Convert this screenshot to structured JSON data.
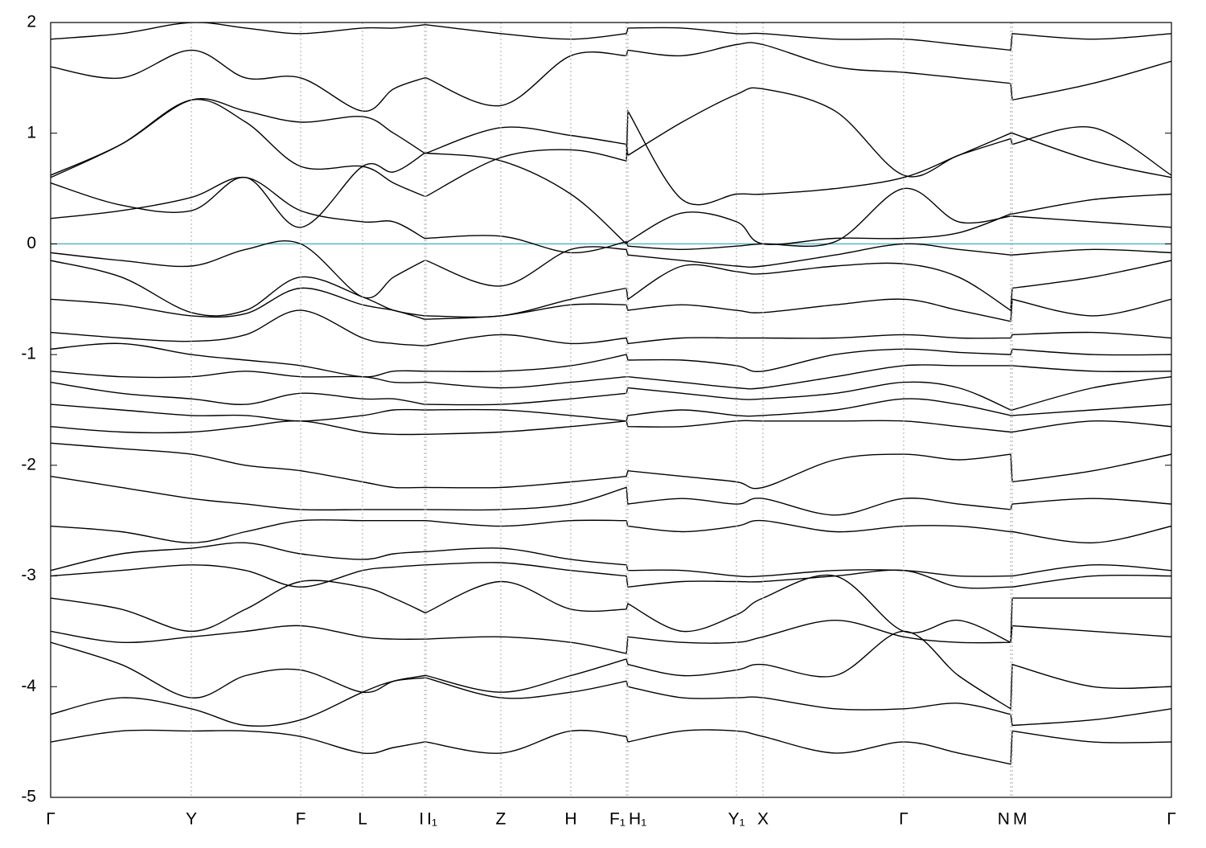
{
  "chart_data": {
    "type": "line",
    "x": [
      0,
      0.063,
      0.1255,
      0.174,
      0.2231,
      0.2783,
      0.306,
      0.3336,
      0.335,
      0.4017,
      0.4641,
      0.5136,
      0.5151,
      0.5635,
      0.6119,
      0.6356,
      0.7,
      0.7611,
      0.81,
      0.8565,
      0.858,
      0.93,
      1.0
    ],
    "xlim": [
      0,
      1.0
    ],
    "xticks": [
      {
        "value": 0,
        "label": "Γ"
      },
      {
        "value": 0.1255,
        "label": "Y"
      },
      {
        "value": 0.2231,
        "label": "F"
      },
      {
        "value": 0.2783,
        "label": "L"
      },
      {
        "value": 0.3336,
        "label": "I"
      },
      {
        "value": 0.335,
        "label": "I₁"
      },
      {
        "value": 0.4017,
        "label": "Z"
      },
      {
        "value": 0.4641,
        "label": "H"
      },
      {
        "value": 0.5136,
        "label": "F₁"
      },
      {
        "value": 0.5151,
        "label": "H₁"
      },
      {
        "value": 0.6119,
        "label": "Y₁"
      },
      {
        "value": 0.6356,
        "label": "X"
      },
      {
        "value": 0.7611,
        "label": "Γ"
      },
      {
        "value": 0.8565,
        "label": "N"
      },
      {
        "value": 0.858,
        "label": "M"
      },
      {
        "value": 1.0,
        "label": "Γ"
      }
    ],
    "ylim": [
      -5,
      2
    ],
    "yticks": [
      2,
      1,
      0,
      -1,
      -2,
      -3,
      -4,
      -5
    ],
    "x_grid": true,
    "hlines": [
      {
        "value": 0,
        "color": "#5ab4cc"
      }
    ],
    "series": [
      {
        "color": "#000000",
        "values": [
          0.6,
          0.9,
          1.3,
          1.1,
          0.7,
          0.7,
          0.55,
          0.43,
          0.43,
          0.78,
          0.85,
          0.75,
          1.2,
          0.4,
          0.45,
          0.45,
          0.5,
          0.6,
          0.8,
          1.0,
          1.0,
          0.75,
          0.6
        ]
      },
      {
        "color": "#000000",
        "values": [
          0.55,
          0.35,
          0.3,
          0.6,
          0.15,
          0.7,
          0.65,
          0.82,
          0.82,
          0.75,
          0.45,
          0.0,
          0.02,
          0.28,
          0.2,
          0.0,
          0.05,
          0.05,
          0.1,
          0.27,
          0.27,
          0.4,
          0.45
        ]
      },
      {
        "color": "#000000",
        "values": [
          0.23,
          0.3,
          0.42,
          0.6,
          0.3,
          0.2,
          0.2,
          0.05,
          0.05,
          0.07,
          -0.08,
          0.02,
          -0.02,
          -0.05,
          -0.02,
          0.0,
          0.02,
          0.5,
          0.2,
          0.25,
          0.25,
          0.2,
          0.15
        ]
      },
      {
        "color": "#000000",
        "values": [
          -0.08,
          -0.15,
          -0.2,
          -0.05,
          0.0,
          -0.48,
          -0.3,
          -0.15,
          -0.15,
          -0.38,
          -0.05,
          -0.05,
          -0.1,
          -0.15,
          -0.2,
          -0.2,
          -0.1,
          0.0,
          -0.05,
          -0.1,
          -0.1,
          -0.05,
          -0.08
        ]
      },
      {
        "color": "#000000",
        "values": [
          -0.15,
          -0.3,
          -0.62,
          -0.6,
          -0.3,
          -0.48,
          -0.6,
          -0.65,
          -0.65,
          -0.65,
          -0.5,
          -0.4,
          -0.5,
          -0.2,
          -0.25,
          -0.27,
          -0.2,
          -0.18,
          -0.3,
          -0.6,
          -0.4,
          -0.3,
          -0.15
        ]
      },
      {
        "color": "#000000",
        "values": [
          -0.5,
          -0.55,
          -0.65,
          -0.63,
          -0.4,
          -0.55,
          -0.6,
          -0.68,
          -0.68,
          -0.65,
          -0.55,
          -0.55,
          -0.6,
          -0.55,
          -0.6,
          -0.62,
          -0.55,
          -0.5,
          -0.6,
          -0.7,
          -0.5,
          -0.65,
          -0.5
        ]
      },
      {
        "color": "#000000",
        "values": [
          -0.8,
          -0.85,
          -0.88,
          -0.82,
          -0.6,
          -0.85,
          -0.9,
          -0.92,
          -0.92,
          -0.82,
          -0.9,
          -0.85,
          -0.9,
          -0.85,
          -0.85,
          -0.85,
          -0.85,
          -0.82,
          -0.85,
          -0.85,
          -0.82,
          -0.8,
          -0.85
        ]
      },
      {
        "color": "#000000",
        "values": [
          -0.95,
          -0.9,
          -1.0,
          -1.05,
          -1.1,
          -1.2,
          -1.15,
          -1.15,
          -1.15,
          -1.15,
          -1.1,
          -1.0,
          -1.05,
          -1.05,
          -1.1,
          -1.15,
          -1.0,
          -0.95,
          -0.98,
          -1.0,
          -0.95,
          -1.0,
          -1.0
        ]
      },
      {
        "color": "#000000",
        "values": [
          -1.15,
          -1.2,
          -1.2,
          -1.15,
          -1.2,
          -1.2,
          -1.25,
          -1.25,
          -1.25,
          -1.3,
          -1.25,
          -1.2,
          -1.2,
          -1.25,
          -1.3,
          -1.3,
          -1.2,
          -1.1,
          -1.1,
          -1.1,
          -1.1,
          -1.15,
          -1.15
        ]
      },
      {
        "color": "#000000",
        "values": [
          -1.25,
          -1.35,
          -1.4,
          -1.45,
          -1.35,
          -1.4,
          -1.4,
          -1.45,
          -1.45,
          -1.45,
          -1.4,
          -1.35,
          -1.3,
          -1.35,
          -1.4,
          -1.4,
          -1.35,
          -1.25,
          -1.3,
          -1.5,
          -1.5,
          -1.3,
          -1.2
        ]
      },
      {
        "color": "#000000",
        "values": [
          -1.45,
          -1.5,
          -1.55,
          -1.55,
          -1.6,
          -1.55,
          -1.5,
          -1.5,
          -1.5,
          -1.5,
          -1.55,
          -1.6,
          -1.55,
          -1.5,
          -1.55,
          -1.55,
          -1.5,
          -1.4,
          -1.45,
          -1.55,
          -1.55,
          -1.5,
          -1.45
        ]
      },
      {
        "color": "#000000",
        "values": [
          -1.65,
          -1.7,
          -1.7,
          -1.65,
          -1.6,
          -1.7,
          -1.72,
          -1.72,
          -1.72,
          -1.7,
          -1.65,
          -1.6,
          -1.65,
          -1.65,
          -1.6,
          -1.6,
          -1.6,
          -1.6,
          -1.65,
          -1.7,
          -1.7,
          -1.6,
          -1.65
        ]
      },
      {
        "color": "#000000",
        "values": [
          -1.8,
          -1.85,
          -1.9,
          -2.0,
          -2.05,
          -2.15,
          -2.2,
          -2.2,
          -2.2,
          -2.2,
          -2.15,
          -2.1,
          -2.05,
          -2.1,
          -2.15,
          -2.2,
          -1.95,
          -1.9,
          -1.95,
          -1.9,
          -2.15,
          -2.05,
          -1.9
        ]
      },
      {
        "color": "#000000",
        "values": [
          -2.1,
          -2.2,
          -2.3,
          -2.35,
          -2.4,
          -2.4,
          -2.4,
          -2.4,
          -2.4,
          -2.4,
          -2.35,
          -2.2,
          -2.35,
          -2.3,
          -2.35,
          -2.3,
          -2.45,
          -2.3,
          -2.35,
          -2.4,
          -2.35,
          -2.3,
          -2.35
        ]
      },
      {
        "color": "#000000",
        "values": [
          -2.55,
          -2.6,
          -2.7,
          -2.6,
          -2.5,
          -2.5,
          -2.5,
          -2.5,
          -2.5,
          -2.55,
          -2.5,
          -2.5,
          -2.55,
          -2.6,
          -2.55,
          -2.5,
          -2.6,
          -2.55,
          -2.55,
          -2.6,
          -2.6,
          -2.7,
          -2.55
        ]
      },
      {
        "color": "#000000",
        "values": [
          -2.95,
          -2.8,
          -2.75,
          -2.7,
          -2.8,
          -2.85,
          -2.8,
          -2.78,
          -2.78,
          -2.75,
          -2.85,
          -2.9,
          -2.95,
          -2.95,
          -3.0,
          -3.0,
          -2.95,
          -2.95,
          -3.0,
          -3.0,
          -3.0,
          -2.9,
          -2.95
        ]
      },
      {
        "color": "#000000",
        "values": [
          -3.0,
          -2.95,
          -2.9,
          -2.95,
          -3.1,
          -2.95,
          -2.92,
          -2.9,
          -2.9,
          -2.88,
          -2.95,
          -3.0,
          -3.1,
          -3.05,
          -3.05,
          -3.05,
          -3.0,
          -2.95,
          -3.1,
          -3.1,
          -3.1,
          -3.0,
          -3.0
        ]
      },
      {
        "color": "#000000",
        "values": [
          -3.2,
          -3.3,
          -3.5,
          -3.3,
          -3.05,
          -3.1,
          -3.2,
          -3.33,
          -3.33,
          -3.05,
          -3.3,
          -3.3,
          -3.25,
          -3.5,
          -3.35,
          -3.2,
          -3.0,
          -3.5,
          -3.4,
          -3.6,
          -3.2,
          -3.2,
          -3.2
        ]
      },
      {
        "color": "#000000",
        "values": [
          -3.5,
          -3.6,
          -3.55,
          -3.5,
          -3.45,
          -3.55,
          -3.57,
          -3.57,
          -3.57,
          -3.55,
          -3.6,
          -3.7,
          -3.55,
          -3.6,
          -3.6,
          -3.55,
          -3.4,
          -3.55,
          -3.6,
          -3.6,
          -3.45,
          -3.5,
          -3.55
        ]
      },
      {
        "color": "#000000",
        "values": [
          -3.6,
          -3.8,
          -4.1,
          -3.9,
          -3.85,
          -4.05,
          -3.95,
          -3.9,
          -3.9,
          -4.05,
          -3.9,
          -3.75,
          -3.8,
          -3.9,
          -3.85,
          -3.8,
          -3.9,
          -3.5,
          -3.9,
          -4.2,
          -3.8,
          -4.0,
          -4.0
        ]
      },
      {
        "color": "#000000",
        "values": [
          -4.25,
          -4.1,
          -4.2,
          -4.35,
          -4.3,
          -4.05,
          -3.95,
          -3.92,
          -3.92,
          -4.1,
          -4.05,
          -3.95,
          -4.0,
          -4.1,
          -4.1,
          -4.1,
          -4.2,
          -4.2,
          -4.15,
          -4.25,
          -4.35,
          -4.3,
          -4.2
        ]
      },
      {
        "color": "#000000",
        "values": [
          -4.5,
          -4.4,
          -4.4,
          -4.4,
          -4.45,
          -4.6,
          -4.55,
          -4.5,
          -4.5,
          -4.6,
          -4.4,
          -4.45,
          -4.5,
          -4.4,
          -4.4,
          -4.45,
          -4.6,
          -4.5,
          -4.6,
          -4.7,
          -4.4,
          -4.5,
          -4.5
        ]
      },
      {
        "color": "#000000",
        "values": [
          1.6,
          1.5,
          1.75,
          1.5,
          1.5,
          1.2,
          1.4,
          1.5,
          1.5,
          1.25,
          1.7,
          1.7,
          1.75,
          1.7,
          1.8,
          1.8,
          1.6,
          1.55,
          1.5,
          1.45,
          1.3,
          1.45,
          1.65
        ]
      },
      {
        "color": "#000000",
        "values": [
          1.85,
          1.9,
          2.0,
          1.95,
          1.9,
          1.95,
          1.95,
          1.98,
          1.98,
          1.9,
          1.85,
          1.9,
          1.95,
          1.95,
          1.9,
          1.9,
          1.85,
          1.85,
          1.8,
          1.75,
          1.9,
          1.85,
          1.9
        ]
      },
      {
        "color": "#000000",
        "values": [
          0.62,
          0.9,
          1.3,
          1.2,
          1.1,
          1.15,
          1.0,
          0.82,
          0.82,
          1.05,
          0.98,
          0.9,
          0.8,
          1.1,
          1.35,
          1.4,
          1.2,
          0.62,
          0.8,
          0.95,
          0.9,
          1.05,
          0.62
        ]
      }
    ]
  }
}
